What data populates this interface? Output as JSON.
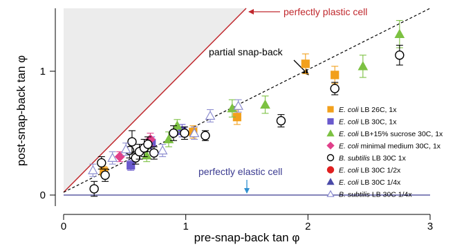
{
  "chart_data": {
    "type": "scatter",
    "xlabel": "pre-snap-back tan φ",
    "ylabel": "post-snap-back tan φ",
    "xlim": [
      0,
      3
    ],
    "ylim": [
      -0.05,
      1.55
    ],
    "x_ticks": [
      0,
      1,
      2,
      3
    ],
    "x_tick_labels": [
      "0",
      "1",
      "2",
      "3"
    ],
    "y_ticks": [
      0,
      1
    ],
    "y_tick_labels": [
      "0",
      "1"
    ],
    "grid": false,
    "legend_position": "bottom-right",
    "annotations": {
      "plastic": "perfectly plastic cell",
      "snapback": "partial snap-back",
      "elastic": "perfectly elastic cell"
    },
    "reference_lines": [
      {
        "name": "perfectly plastic cell",
        "slope": 1.0,
        "color": "#c0282d"
      },
      {
        "name": "partial snap-back",
        "slope": 0.47,
        "color": "#000000",
        "dashed": true
      },
      {
        "name": "perfectly elastic cell",
        "slope": 0.0,
        "color": "#3a3a90"
      }
    ],
    "shaded_region": "above y = x",
    "series": [
      {
        "legend_species": "E. coli",
        "legend_rest": " LB 26C, 1x",
        "marker": "square",
        "color": "#f2a01c",
        "filled": true,
        "points": [
          {
            "x": 0.33,
            "y": 0.19,
            "err": 0.04
          },
          {
            "x": 1.06,
            "y": 0.51,
            "err": 0.05
          },
          {
            "x": 1.42,
            "y": 0.63,
            "err": 0.06
          },
          {
            "x": 1.98,
            "y": 1.06,
            "err": 0.08
          },
          {
            "x": 2.22,
            "y": 0.97,
            "err": 0.07
          }
        ]
      },
      {
        "legend_species": "E. coli",
        "legend_rest": " LB 30C, 1x",
        "marker": "square",
        "color": "#6a5acd",
        "filled": true,
        "points": [
          {
            "x": 0.55,
            "y": 0.24,
            "err": 0.04
          },
          {
            "x": 0.72,
            "y": 0.42,
            "err": 0.05
          },
          {
            "x": 0.97,
            "y": 0.52,
            "err": 0.05
          }
        ]
      },
      {
        "legend_species": "E. coli",
        "legend_rest": " LB+15% sucrose 30C, 1x",
        "marker": "triangle",
        "color": "#7cc142",
        "filled": true,
        "points": [
          {
            "x": 0.68,
            "y": 0.32,
            "err": 0.05
          },
          {
            "x": 0.86,
            "y": 0.45,
            "err": 0.06
          },
          {
            "x": 0.93,
            "y": 0.56,
            "err": 0.05
          },
          {
            "x": 1.38,
            "y": 0.7,
            "err": 0.07
          },
          {
            "x": 1.65,
            "y": 0.73,
            "err": 0.07
          },
          {
            "x": 2.45,
            "y": 1.04,
            "err": 0.09
          },
          {
            "x": 2.75,
            "y": 1.3,
            "err": 0.11
          }
        ]
      },
      {
        "legend_species": "E. coli",
        "legend_rest": " minimal medium 30C, 1x",
        "marker": "diamond",
        "color": "#e0408a",
        "filled": true,
        "points": [
          {
            "x": 0.46,
            "y": 0.31,
            "err": 0.04
          },
          {
            "x": 0.71,
            "y": 0.45,
            "err": 0.05
          }
        ]
      },
      {
        "legend_species": "B. subtilis",
        "legend_rest": " LB 30C 1x",
        "marker": "circle",
        "color": "#000000",
        "filled": false,
        "points": [
          {
            "x": 0.25,
            "y": 0.05,
            "err": 0.06
          },
          {
            "x": 0.31,
            "y": 0.26,
            "err": 0.05
          },
          {
            "x": 0.34,
            "y": 0.16,
            "err": 0.05
          },
          {
            "x": 0.54,
            "y": 0.36,
            "err": 0.06
          },
          {
            "x": 0.56,
            "y": 0.43,
            "err": 0.09
          },
          {
            "x": 0.59,
            "y": 0.3,
            "err": 0.05
          },
          {
            "x": 0.62,
            "y": 0.35,
            "err": 0.06
          },
          {
            "x": 0.66,
            "y": 0.38,
            "err": 0.07
          },
          {
            "x": 0.69,
            "y": 0.41,
            "err": 0.06
          },
          {
            "x": 0.74,
            "y": 0.34,
            "err": 0.05
          },
          {
            "x": 0.9,
            "y": 0.5,
            "err": 0.06
          },
          {
            "x": 0.99,
            "y": 0.5,
            "err": 0.05
          },
          {
            "x": 1.16,
            "y": 0.48,
            "err": 0.04
          },
          {
            "x": 1.78,
            "y": 0.6,
            "err": 0.05
          },
          {
            "x": 2.22,
            "y": 0.86,
            "err": 0.05
          },
          {
            "x": 2.75,
            "y": 1.13,
            "err": 0.08
          }
        ]
      },
      {
        "legend_species": "E. coli",
        "legend_rest": " LB 30C 1/2x",
        "marker": "circle",
        "color": "#e02020",
        "filled": true,
        "points": []
      },
      {
        "legend_species": "E. coli",
        "legend_rest": " LB 30C 1/4x",
        "marker": "triangle",
        "color": "#4a4aa8",
        "filled": true,
        "points": []
      },
      {
        "legend_species": "B. subtilis",
        "legend_rest": " LB 30C 1/4x",
        "marker": "triangle",
        "color": "#8c8cd0",
        "filled": false,
        "points": [
          {
            "x": 0.24,
            "y": 0.2,
            "err": 0.05
          },
          {
            "x": 0.4,
            "y": 0.3,
            "err": 0.05
          },
          {
            "x": 0.51,
            "y": 0.37,
            "err": 0.05
          },
          {
            "x": 0.81,
            "y": 0.36,
            "err": 0.05
          },
          {
            "x": 1.07,
            "y": 0.5,
            "err": 0.05
          },
          {
            "x": 1.2,
            "y": 0.64,
            "err": 0.05
          },
          {
            "x": 1.43,
            "y": 0.72,
            "err": 0.05
          }
        ]
      }
    ]
  }
}
